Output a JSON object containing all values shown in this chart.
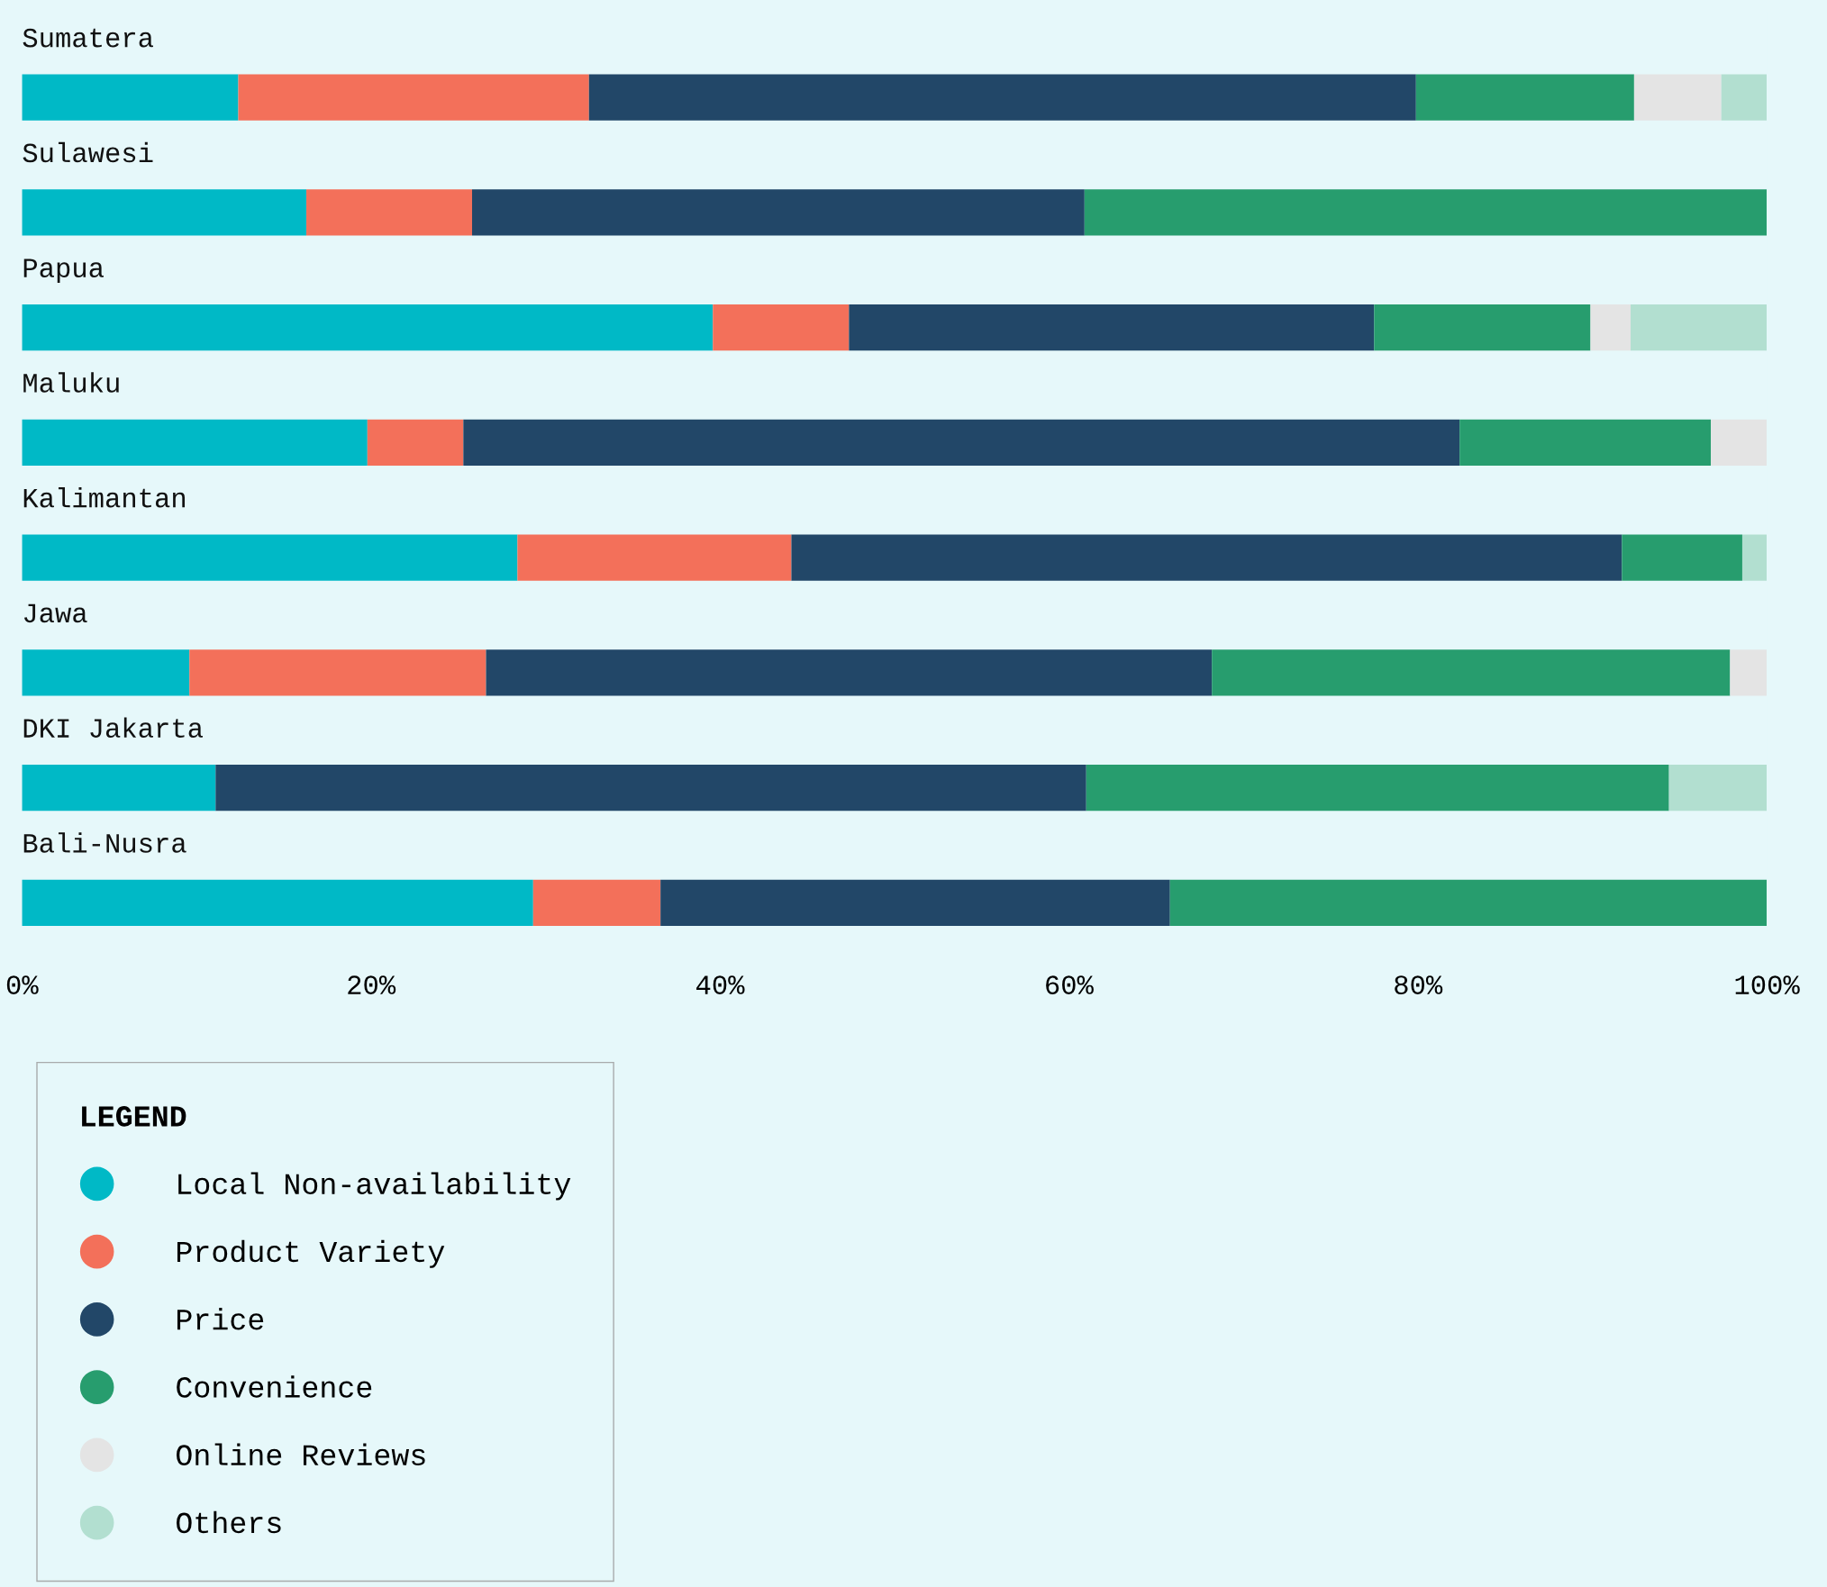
{
  "chart_data": {
    "type": "bar",
    "orientation": "horizontal",
    "stacked": true,
    "categories": [
      "Sumatera",
      "Sulawesi",
      "Papua",
      "Maluku",
      "Kalimantan",
      "Jawa",
      "DKI Jakarta",
      "Bali-Nusra"
    ],
    "series": [
      {
        "name": "Local Non-availability",
        "color": "#00b9c6",
        "values": [
          12.4,
          16.3,
          39.6,
          19.8,
          28.4,
          9.6,
          11.1,
          29.3
        ]
      },
      {
        "name": "Product Variety",
        "color": "#f3705a",
        "values": [
          20.1,
          9.5,
          7.8,
          5.5,
          15.7,
          17.0,
          0,
          7.3
        ]
      },
      {
        "name": "Price",
        "color": "#224768",
        "values": [
          47.4,
          35.1,
          30.1,
          57.1,
          47.6,
          41.6,
          49.9,
          29.2
        ]
      },
      {
        "name": "Convenience",
        "color": "#279d6e",
        "values": [
          12.5,
          39.1,
          12.4,
          14.4,
          6.9,
          29.7,
          33.4,
          34.2
        ]
      },
      {
        "name": "Online Reviews",
        "color": "#e4e4e4",
        "values": [
          5.0,
          0,
          2.3,
          3.2,
          0,
          2.1,
          0,
          0
        ]
      },
      {
        "name": "Others",
        "color": "#b2dfd0",
        "values": [
          2.6,
          0,
          7.8,
          0,
          1.4,
          0,
          5.6,
          0
        ]
      }
    ],
    "xlim": [
      0,
      100
    ],
    "xticks": [
      {
        "value": 0,
        "label": "0%"
      },
      {
        "value": 20,
        "label": "20%"
      },
      {
        "value": 40,
        "label": "40%"
      },
      {
        "value": 60,
        "label": "60%"
      },
      {
        "value": 80,
        "label": "80%"
      },
      {
        "value": 100,
        "label": "100%"
      }
    ],
    "grid": false,
    "legend": "bottom left",
    "legend_title": "LEGEND"
  }
}
